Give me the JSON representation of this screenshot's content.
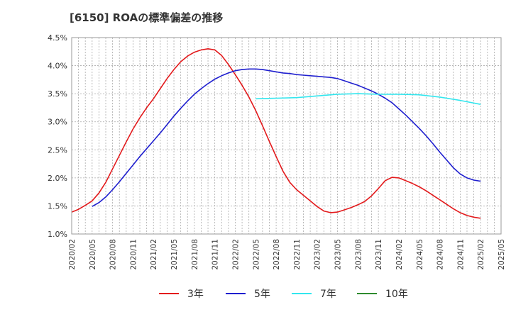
{
  "chart_data": {
    "type": "line",
    "title": "[6150]  ROAの標準偏差の推移",
    "xlabel": "",
    "ylabel": "",
    "x_ticks": [
      "2020/02",
      "2020/05",
      "2020/08",
      "2020/11",
      "2021/02",
      "2021/05",
      "2021/08",
      "2021/11",
      "2022/02",
      "2022/05",
      "2022/08",
      "2022/11",
      "2023/02",
      "2023/05",
      "2023/08",
      "2023/11",
      "2024/02",
      "2024/05",
      "2024/08",
      "2024/11",
      "2025/02",
      "2025/05"
    ],
    "y_ticks": [
      "1.0%",
      "1.5%",
      "2.0%",
      "2.5%",
      "3.0%",
      "3.5%",
      "4.0%",
      "4.5%"
    ],
    "ylim": [
      1.0,
      4.5
    ],
    "grid": true,
    "legend_position": "bottom",
    "series": [
      {
        "name": "3年",
        "color": "#e31a1c",
        "x": [
          "2020/02",
          "2020/03",
          "2020/04",
          "2020/05",
          "2020/06",
          "2020/07",
          "2020/08",
          "2020/09",
          "2020/10",
          "2020/11",
          "2020/12",
          "2021/01",
          "2021/02",
          "2021/03",
          "2021/04",
          "2021/05",
          "2021/06",
          "2021/07",
          "2021/08",
          "2021/09",
          "2021/10",
          "2021/11",
          "2021/12",
          "2022/01",
          "2022/02",
          "2022/03",
          "2022/04",
          "2022/05",
          "2022/06",
          "2022/07",
          "2022/08",
          "2022/09",
          "2022/10",
          "2022/11",
          "2022/12",
          "2023/01",
          "2023/02",
          "2023/03",
          "2023/04",
          "2023/05",
          "2023/06",
          "2023/07",
          "2023/08",
          "2023/09",
          "2023/10",
          "2023/11",
          "2023/12",
          "2024/01",
          "2024/02",
          "2024/03",
          "2024/04",
          "2024/05",
          "2024/06",
          "2024/07",
          "2024/08",
          "2024/09",
          "2024/10",
          "2024/11",
          "2024/12",
          "2025/01",
          "2025/02"
        ],
        "values": [
          1.39,
          1.44,
          1.51,
          1.59,
          1.73,
          1.92,
          2.16,
          2.4,
          2.64,
          2.87,
          3.07,
          3.25,
          3.41,
          3.59,
          3.77,
          3.93,
          4.07,
          4.17,
          4.24,
          4.28,
          4.3,
          4.28,
          4.18,
          4.02,
          3.84,
          3.65,
          3.44,
          3.2,
          2.93,
          2.65,
          2.38,
          2.12,
          1.92,
          1.79,
          1.69,
          1.59,
          1.49,
          1.41,
          1.38,
          1.39,
          1.43,
          1.47,
          1.52,
          1.58,
          1.68,
          1.81,
          1.95,
          2.01,
          2.0,
          1.95,
          1.9,
          1.84,
          1.77,
          1.69,
          1.61,
          1.53,
          1.45,
          1.38,
          1.33,
          1.3,
          1.28
        ]
      },
      {
        "name": "5年",
        "color": "#1f1fcf",
        "x": [
          "2020/05",
          "2020/06",
          "2020/07",
          "2020/08",
          "2020/09",
          "2020/10",
          "2020/11",
          "2020/12",
          "2021/01",
          "2021/02",
          "2021/03",
          "2021/04",
          "2021/05",
          "2021/06",
          "2021/07",
          "2021/08",
          "2021/09",
          "2021/10",
          "2021/11",
          "2021/12",
          "2022/01",
          "2022/02",
          "2022/03",
          "2022/04",
          "2022/05",
          "2022/06",
          "2022/07",
          "2022/08",
          "2022/09",
          "2022/10",
          "2022/11",
          "2022/12",
          "2023/01",
          "2023/02",
          "2023/03",
          "2023/04",
          "2023/05",
          "2023/06",
          "2023/07",
          "2023/08",
          "2023/09",
          "2023/10",
          "2023/11",
          "2023/12",
          "2024/01",
          "2024/02",
          "2024/03",
          "2024/04",
          "2024/05",
          "2024/06",
          "2024/07",
          "2024/08",
          "2024/09",
          "2024/10",
          "2024/11",
          "2024/12",
          "2025/01",
          "2025/02"
        ],
        "values": [
          1.49,
          1.56,
          1.66,
          1.79,
          1.93,
          2.08,
          2.23,
          2.38,
          2.52,
          2.66,
          2.8,
          2.95,
          3.1,
          3.24,
          3.37,
          3.49,
          3.59,
          3.68,
          3.76,
          3.82,
          3.87,
          3.91,
          3.93,
          3.94,
          3.94,
          3.93,
          3.91,
          3.89,
          3.87,
          3.86,
          3.84,
          3.83,
          3.82,
          3.81,
          3.8,
          3.79,
          3.77,
          3.73,
          3.69,
          3.65,
          3.6,
          3.55,
          3.49,
          3.42,
          3.34,
          3.23,
          3.12,
          3.0,
          2.88,
          2.75,
          2.61,
          2.46,
          2.32,
          2.18,
          2.07,
          2.0,
          1.96,
          1.94
        ]
      },
      {
        "name": "7年",
        "color": "#33e6ee",
        "x": [
          "2022/05",
          "2022/08",
          "2022/11",
          "2023/02",
          "2023/05",
          "2023/08",
          "2023/11",
          "2024/02",
          "2024/05",
          "2024/08",
          "2024/11",
          "2025/02"
        ],
        "values": [
          3.41,
          3.42,
          3.43,
          3.46,
          3.49,
          3.5,
          3.49,
          3.49,
          3.48,
          3.44,
          3.38,
          3.31
        ]
      },
      {
        "name": "10年",
        "color": "#2e8b2e",
        "x": [],
        "values": []
      }
    ]
  }
}
